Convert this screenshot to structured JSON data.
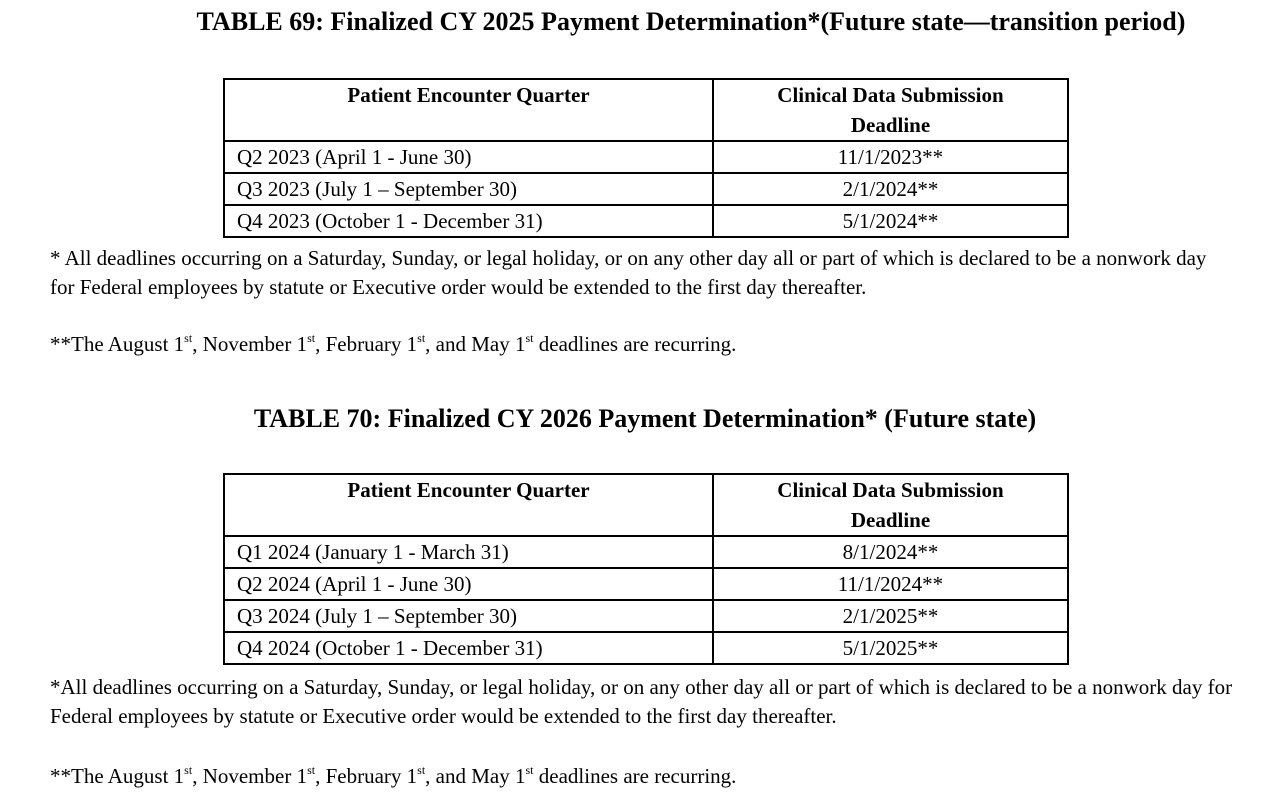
{
  "tables": [
    {
      "title": "TABLE 69:  Finalized CY 2025 Payment Determination*(Future state—transition period)",
      "headers": [
        "Patient Encounter Quarter",
        "Clinical Data Submission Deadline"
      ],
      "rows": [
        [
          "Q2 2023 (April 1 - June 30)",
          "11/1/2023**"
        ],
        [
          "Q3 2023 (July 1 – September 30)",
          "2/1/2024**"
        ],
        [
          "Q4 2023 (October 1 - December 31)",
          "5/1/2024**"
        ]
      ],
      "footnote": "* All deadlines occurring on a Saturday, Sunday, or legal holiday, or on any other day all or part of which is declared to be a nonwork day for Federal employees by statute or Executive order would be extended to the first day thereafter.",
      "recurring": [
        "**The August 1",
        "st",
        ", November 1",
        "st",
        ", February 1",
        "st",
        ", and May 1",
        "st",
        " deadlines are recurring."
      ]
    },
    {
      "title": "TABLE 70:  Finalized CY 2026 Payment Determination* (Future state)",
      "headers": [
        "Patient Encounter Quarter",
        "Clinical Data Submission Deadline"
      ],
      "rows": [
        [
          "Q1 2024 (January 1 - March 31)",
          "8/1/2024**"
        ],
        [
          "Q2 2024 (April 1 - June 30)",
          "11/1/2024**"
        ],
        [
          "Q3 2024 (July 1 – September 30)",
          "2/1/2025**"
        ],
        [
          "Q4 2024 (October 1 - December 31)",
          "5/1/2025**"
        ]
      ],
      "footnote": "*All deadlines occurring on a Saturday, Sunday, or legal holiday, or on any other day all or part of which is declared to be a nonwork day for Federal employees by statute or Executive order would be extended to the first day thereafter.",
      "recurring": [
        "**The August 1",
        "st",
        ", November 1",
        "st",
        ", February 1",
        "st",
        ", and May 1",
        "st",
        " deadlines are recurring."
      ]
    }
  ]
}
